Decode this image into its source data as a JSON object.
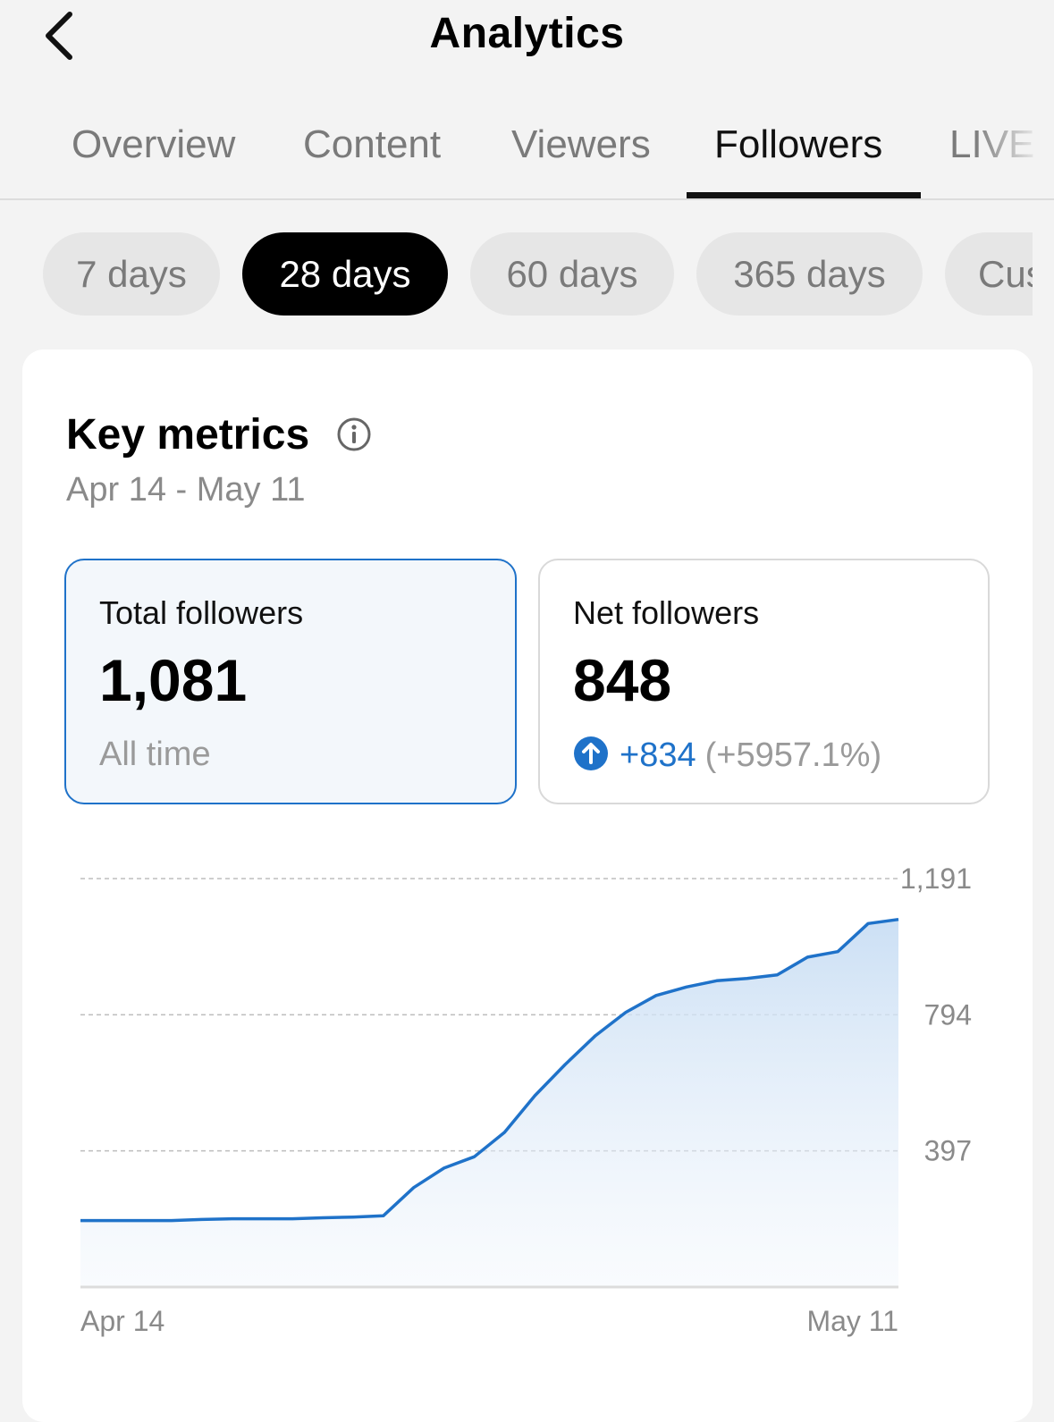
{
  "header": {
    "title": "Analytics"
  },
  "tabs": [
    {
      "label": "Overview",
      "active": false
    },
    {
      "label": "Content",
      "active": false
    },
    {
      "label": "Viewers",
      "active": false
    },
    {
      "label": "Followers",
      "active": true
    },
    {
      "label": "LIVE",
      "active": false
    }
  ],
  "ranges": [
    {
      "label": "7 days",
      "active": false
    },
    {
      "label": "28 days",
      "active": true
    },
    {
      "label": "60 days",
      "active": false
    },
    {
      "label": "365 days",
      "active": false
    },
    {
      "label": "Custom",
      "active": false
    }
  ],
  "key_metrics": {
    "title": "Key metrics",
    "date_range": "Apr 14 - May 11"
  },
  "metrics": {
    "total": {
      "label": "Total followers",
      "value": "1,081",
      "sub": "All time"
    },
    "net": {
      "label": "Net followers",
      "value": "848",
      "delta": "+834",
      "delta_pct": "(+5957.1%)"
    }
  },
  "colors": {
    "accent": "#1f72c9",
    "active_tab": "#111111",
    "inactive": "#7a7a7a"
  },
  "icons": {
    "back": "chevron-left-icon",
    "info": "info-icon",
    "delta": "arrow-up-circle-icon"
  },
  "chart_data": {
    "type": "area",
    "title": "",
    "xlabel": "",
    "ylabel": "",
    "x_tick_labels": [
      "Apr 14",
      "May 11"
    ],
    "y_ticks": [
      397,
      794,
      1191
    ],
    "y_tick_labels": [
      "397",
      "794",
      "1,191"
    ],
    "ylim": [
      0,
      1191
    ],
    "grid": "horizontal-dashed",
    "y_axis_position": "right",
    "series": [
      {
        "values": [
          194,
          194,
          194,
          194,
          197,
          199,
          199,
          199,
          202,
          204,
          208,
          290,
          347,
          380,
          451,
          558,
          649,
          733,
          801,
          850,
          875,
          893,
          900,
          910,
          962,
          978,
          1060,
          1072
        ]
      }
    ]
  }
}
